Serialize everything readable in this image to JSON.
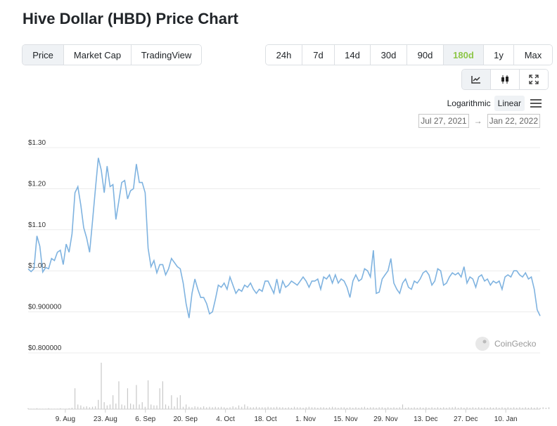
{
  "title": "Hive Dollar (HBD) Price Chart",
  "view_tabs": [
    "Price",
    "Market Cap",
    "TradingView"
  ],
  "active_view": "Price",
  "range_tabs": [
    "24h",
    "7d",
    "14d",
    "30d",
    "90d",
    "180d",
    "1y",
    "Max"
  ],
  "active_range": "180d",
  "tool_icons": [
    "line-chart-icon",
    "candlestick-icon",
    "fullscreen-icon"
  ],
  "scale": {
    "log": "Logarithmic",
    "linear": "Linear",
    "active": "Linear"
  },
  "date_range": {
    "from": "Jul 27, 2021",
    "arrow": "→",
    "to": "Jan 22, 2022"
  },
  "credit": "CoinGecko",
  "colors": {
    "line": "#7fb3e0",
    "volume": "#c8c8c8",
    "accent": "#8dc647"
  },
  "chart_data": {
    "type": "line",
    "x_start": "2021-07-27",
    "x_end": "2022-01-22",
    "y_ticks": [
      {
        "value": 1.3,
        "label": "$1.30"
      },
      {
        "value": 1.2,
        "label": "$1.20"
      },
      {
        "value": 1.1,
        "label": "$1.10"
      },
      {
        "value": 1.0,
        "label": "$1.00"
      },
      {
        "value": 0.9,
        "label": "$0.900000"
      },
      {
        "value": 0.8,
        "label": "$0.800000"
      }
    ],
    "ylim": [
      0.8,
      1.3
    ],
    "x_ticks": [
      {
        "date": "2021-08-09",
        "label": "9. Aug"
      },
      {
        "date": "2021-08-23",
        "label": "23. Aug"
      },
      {
        "date": "2021-09-06",
        "label": "6. Sep"
      },
      {
        "date": "2021-09-20",
        "label": "20. Sep"
      },
      {
        "date": "2021-10-04",
        "label": "4. Oct"
      },
      {
        "date": "2021-10-18",
        "label": "18. Oct"
      },
      {
        "date": "2021-11-01",
        "label": "1. Nov"
      },
      {
        "date": "2021-11-15",
        "label": "15. Nov"
      },
      {
        "date": "2021-11-29",
        "label": "29. Nov"
      },
      {
        "date": "2021-12-13",
        "label": "13. Dec"
      },
      {
        "date": "2021-12-27",
        "label": "27. Dec"
      },
      {
        "date": "2022-01-10",
        "label": "10. Jan"
      }
    ],
    "series": [
      {
        "values": [
          1.005,
          0.998,
          1.005,
          1.085,
          1.06,
          0.997,
          1.008,
          1.005,
          1.03,
          1.025,
          1.045,
          1.05,
          1.015,
          1.065,
          1.045,
          1.09,
          1.19,
          1.205,
          1.16,
          1.105,
          1.08,
          1.045,
          1.12,
          1.2,
          1.275,
          1.245,
          1.19,
          1.255,
          1.205,
          1.21,
          1.125,
          1.17,
          1.215,
          1.22,
          1.175,
          1.195,
          1.2,
          1.26,
          1.215,
          1.215,
          1.19,
          1.055,
          1.01,
          1.025,
          0.995,
          1.015,
          1.015,
          0.99,
          1.005,
          1.03,
          1.02,
          1.01,
          1.005,
          0.97,
          0.92,
          0.885,
          0.945,
          0.98,
          0.955,
          0.935,
          0.935,
          0.92,
          0.895,
          0.9,
          0.93,
          0.965,
          0.96,
          0.97,
          0.955,
          0.985,
          0.965,
          0.945,
          0.955,
          0.95,
          0.965,
          0.96,
          0.97,
          0.955,
          0.945,
          0.955,
          0.95,
          0.975,
          0.975,
          0.96,
          0.945,
          0.98,
          0.945,
          0.975,
          0.96,
          0.965,
          0.975,
          0.97,
          0.965,
          0.975,
          0.985,
          0.975,
          0.96,
          0.975,
          0.975,
          0.98,
          0.955,
          0.985,
          0.98,
          0.99,
          0.97,
          0.99,
          0.97,
          0.98,
          0.975,
          0.96,
          0.935,
          0.975,
          0.99,
          0.975,
          0.98,
          1.005,
          1.0,
          0.985,
          1.05,
          0.945,
          0.948,
          0.98,
          0.99,
          1.0,
          1.03,
          0.97,
          0.955,
          0.945,
          0.97,
          0.98,
          0.96,
          0.955,
          0.975,
          0.97,
          0.98,
          0.995,
          1.0,
          0.99,
          0.965,
          0.975,
          1.005,
          1.0,
          0.965,
          0.97,
          0.985,
          0.995,
          0.99,
          0.995,
          0.985,
          1.01,
          0.97,
          0.985,
          0.98,
          0.96,
          0.985,
          0.99,
          0.975,
          0.98,
          0.965,
          0.975,
          0.97,
          0.975,
          0.955,
          0.985,
          0.99,
          0.985,
          1.0,
          1.0,
          0.99,
          0.985,
          0.995,
          0.98,
          0.985,
          0.955,
          0.905,
          0.89
        ]
      }
    ],
    "volume": [
      0.02,
      0.01,
      0.01,
      0.02,
      0.01,
      0.01,
      0.01,
      0.02,
      0.01,
      0.01,
      0.01,
      0.02,
      0.01,
      0.01,
      0.02,
      0.03,
      0.45,
      0.1,
      0.08,
      0.05,
      0.06,
      0.04,
      0.05,
      0.06,
      0.2,
      1.0,
      0.15,
      0.08,
      0.1,
      0.3,
      0.12,
      0.6,
      0.1,
      0.08,
      0.45,
      0.12,
      0.1,
      0.52,
      0.1,
      0.15,
      0.05,
      0.62,
      0.1,
      0.08,
      0.08,
      0.45,
      0.6,
      0.1,
      0.07,
      0.3,
      0.06,
      0.25,
      0.3,
      0.05,
      0.1,
      0.05,
      0.04,
      0.06,
      0.05,
      0.04,
      0.06,
      0.04,
      0.05,
      0.04,
      0.05,
      0.04,
      0.05,
      0.04,
      0.03,
      0.04,
      0.06,
      0.04,
      0.08,
      0.05,
      0.1,
      0.06,
      0.04,
      0.04,
      0.05,
      0.04,
      0.04,
      0.04,
      0.05,
      0.04,
      0.04,
      0.05,
      0.04,
      0.04,
      0.03,
      0.04,
      0.03,
      0.05,
      0.04,
      0.04,
      0.03,
      0.04,
      0.05,
      0.04,
      0.04,
      0.03,
      0.04,
      0.04,
      0.03,
      0.04,
      0.05,
      0.04,
      0.03,
      0.04,
      0.04,
      0.03,
      0.04,
      0.03,
      0.04,
      0.03,
      0.04,
      0.05,
      0.03,
      0.04,
      0.04,
      0.03,
      0.04,
      0.04,
      0.03,
      0.04,
      0.03,
      0.04,
      0.03,
      0.04,
      0.1,
      0.03,
      0.04,
      0.03,
      0.04,
      0.03,
      0.04,
      0.03,
      0.04,
      0.03,
      0.04,
      0.03,
      0.04,
      0.03,
      0.04,
      0.03,
      0.04,
      0.04,
      0.05,
      0.03,
      0.04,
      0.03,
      0.04,
      0.03,
      0.04,
      0.03,
      0.04,
      0.03,
      0.04,
      0.03,
      0.04,
      0.03,
      0.04,
      0.03,
      0.04,
      0.03,
      0.04,
      0.03,
      0.04,
      0.03,
      0.04,
      0.03,
      0.04,
      0.03,
      0.04,
      0.03,
      0.04,
      0.03,
      0.04,
      0.03,
      0.04
    ]
  }
}
